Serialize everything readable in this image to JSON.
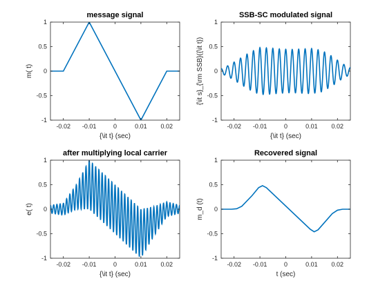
{
  "figure": {
    "background": "#ffffff",
    "line_color": "#0072BD",
    "axis_color": "#262626"
  },
  "chart_data": [
    {
      "type": "line",
      "title": "message signal",
      "xlabel": "{\\it t} (sec)",
      "ylabel": "m( t)",
      "xlim": [
        -0.025,
        0.025
      ],
      "ylim": [
        -1,
        1
      ],
      "xticks": [
        -0.02,
        -0.01,
        0,
        0.01,
        0.02
      ],
      "xtick_labels": [
        "-0.02",
        "-0.01",
        "0",
        "0.01",
        "0.02"
      ],
      "yticks": [
        -1,
        -0.5,
        0,
        0.5,
        1
      ],
      "ytick_labels": [
        "-1",
        "-0.5",
        "0",
        "0.5",
        "1"
      ],
      "series": [
        {
          "x": [
            -0.025,
            -0.02,
            -0.01,
            0.01,
            0.02,
            0.025
          ],
          "y": [
            0,
            0,
            1,
            -1,
            0,
            0
          ]
        }
      ]
    },
    {
      "type": "line",
      "title": "SSB-SC modulated signal",
      "xlabel": "{\\it t} (sec)",
      "ylabel": "{\\it s}_{\\rm SSB}({\\it t})",
      "xlim": [
        -0.025,
        0.025
      ],
      "ylim": [
        -1,
        1
      ],
      "xticks": [
        -0.02,
        -0.01,
        0,
        0.01,
        0.02
      ],
      "xtick_labels": [
        "-0.02",
        "-0.01",
        "0",
        "0.01",
        "0.02"
      ],
      "yticks": [
        -1,
        -0.5,
        0,
        0.5,
        1
      ],
      "ytick_labels": [
        "-1",
        "-0.5",
        "0",
        "0.5",
        "1"
      ],
      "series": [
        {
          "x": [
            -0.025,
            -0.022,
            -0.018,
            -0.014,
            -0.01,
            -0.006,
            -0.002,
            0.002,
            0.006,
            0.01,
            0.014,
            0.018,
            0.022,
            0.025
          ],
          "y_envelope": [
            0.05,
            0.12,
            0.25,
            0.38,
            0.48,
            0.47,
            0.45,
            0.44,
            0.45,
            0.46,
            0.42,
            0.3,
            0.15,
            0.07
          ],
          "cycles_per_sec": 400
        }
      ]
    },
    {
      "type": "line",
      "title": "after multiplying local carrier",
      "xlabel": "{\\it t} (sec)",
      "ylabel": "e( t)",
      "xlim": [
        -0.025,
        0.025
      ],
      "ylim": [
        -1,
        1
      ],
      "xticks": [
        -0.02,
        -0.01,
        0,
        0.01,
        0.02
      ],
      "xtick_labels": [
        "-0.02",
        "-0.01",
        "0",
        "0.01",
        "0.02"
      ],
      "yticks": [
        -1,
        -0.5,
        0,
        0.5,
        1
      ],
      "ytick_labels": [
        "-1",
        "-0.5",
        "0",
        "0.5",
        "1"
      ],
      "series": [
        {
          "x": [
            -0.025,
            -0.02,
            -0.01,
            0.01,
            0.02,
            0.025
          ],
          "y_baseband": [
            0,
            0,
            0.5,
            -0.5,
            0,
            0
          ],
          "x_env": [
            -0.025,
            -0.02,
            -0.015,
            -0.01,
            -0.005,
            0,
            0.005,
            0.01,
            0.015,
            0.02,
            0.025
          ],
          "y_env": [
            0.08,
            0.12,
            0.25,
            0.5,
            0.5,
            0.5,
            0.5,
            0.5,
            0.3,
            0.15,
            0.08
          ],
          "cycles_per_sec": 800
        }
      ]
    },
    {
      "type": "line",
      "title": "Recovered signal",
      "xlabel": "t (sec)",
      "ylabel": "m_d (t)",
      "xlim": [
        -0.025,
        0.025
      ],
      "ylim": [
        -1,
        1
      ],
      "xticks": [
        -0.02,
        -0.01,
        0,
        0.01,
        0.02
      ],
      "xtick_labels": [
        "-0.02",
        "-0.01",
        "0",
        "0.01",
        "0.02"
      ],
      "yticks": [
        -1,
        -0.5,
        0,
        0.5,
        1
      ],
      "ytick_labels": [
        "-1",
        "-0.5",
        "0",
        "0.5",
        "1"
      ],
      "series": [
        {
          "x": [
            -0.025,
            -0.021,
            -0.019,
            -0.017,
            -0.013,
            -0.0105,
            -0.009,
            -0.0075,
            0.0095,
            0.011,
            0.0125,
            0.014,
            0.018,
            0.02,
            0.022,
            0.025
          ],
          "y": [
            0,
            0,
            0.01,
            0.06,
            0.28,
            0.44,
            0.48,
            0.44,
            -0.41,
            -0.46,
            -0.42,
            -0.33,
            -0.09,
            -0.02,
            0,
            0
          ]
        }
      ]
    }
  ]
}
